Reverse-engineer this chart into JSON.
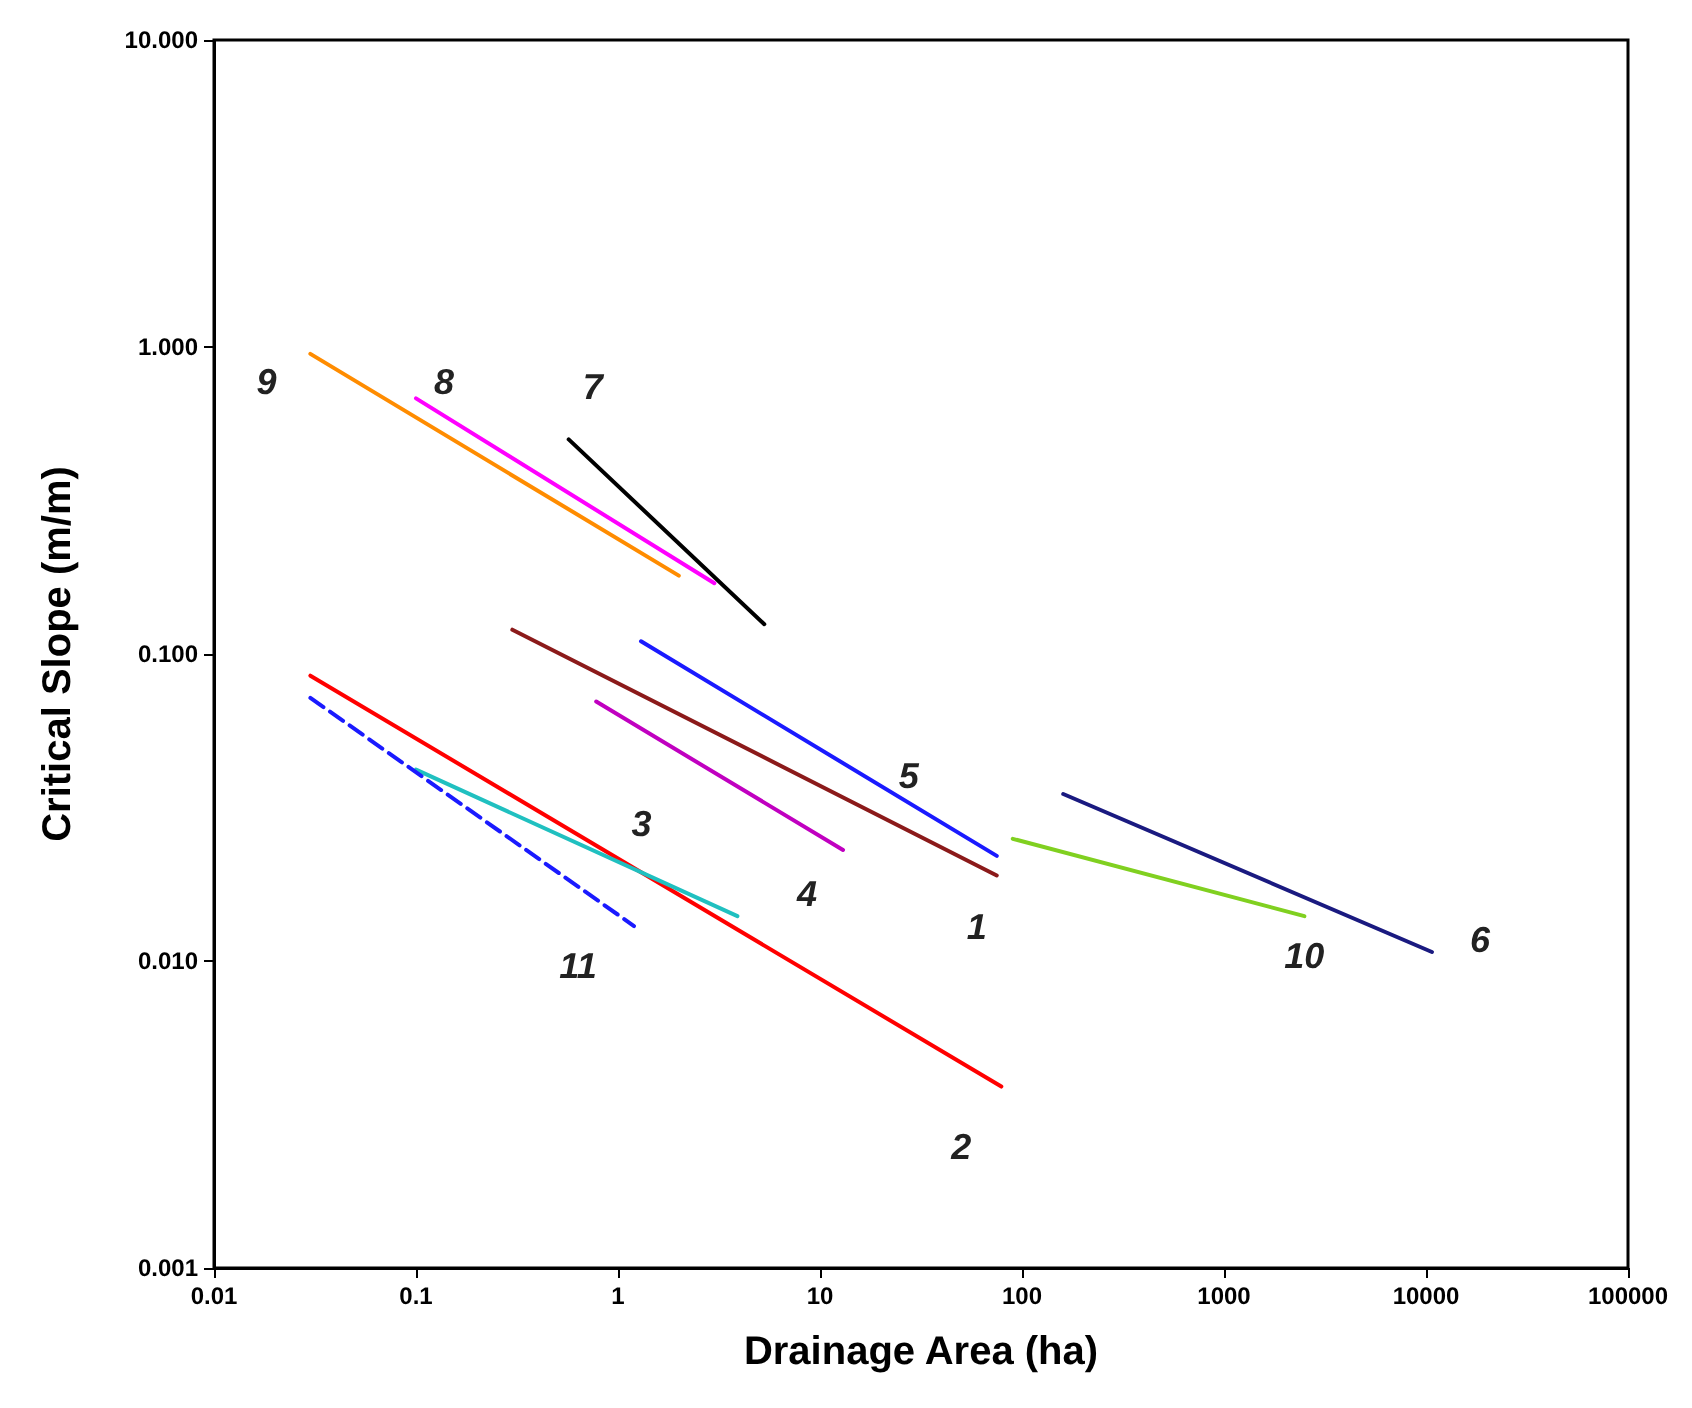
{
  "chart_data": {
    "type": "line",
    "xlabel": "Drainage Area (ha)",
    "ylabel": "Critical Slope (m/m)",
    "log": "xy",
    "grid": false,
    "legend": false,
    "marker": "none",
    "xlim": [
      0.01,
      100000
    ],
    "ylim": [
      0.001,
      10
    ],
    "xticks": [
      0.01,
      0.1,
      1,
      10,
      100,
      1000,
      10000,
      100000
    ],
    "yticks": [
      {
        "value": 0.001,
        "label": "0.001"
      },
      {
        "value": 0.01,
        "label": "0.010"
      },
      {
        "value": 0.1,
        "label": "0.100"
      },
      {
        "value": 1,
        "label": "1.000"
      },
      {
        "value": 10,
        "label": "10.000"
      }
    ],
    "series": [
      {
        "name": "9",
        "color": "#ff8c00",
        "x": [
          0.03,
          2
        ],
        "values": [
          0.95,
          0.18
        ]
      },
      {
        "name": "8",
        "color": "#ff00ff",
        "x": [
          0.1,
          3
        ],
        "values": [
          0.68,
          0.17
        ]
      },
      {
        "name": "7",
        "color": "#000000",
        "x": [
          0.57,
          5.3
        ],
        "values": [
          0.5,
          0.125
        ]
      },
      {
        "name": "1",
        "color": "#8b1a1a",
        "x": [
          0.3,
          75
        ],
        "values": [
          0.12,
          0.019
        ]
      },
      {
        "name": "5",
        "color": "#1a1aff",
        "x": [
          1.3,
          75
        ],
        "values": [
          0.11,
          0.022
        ]
      },
      {
        "name": "4",
        "color": "#c000c0",
        "x": [
          0.78,
          13
        ],
        "values": [
          0.07,
          0.023
        ]
      },
      {
        "name": "2",
        "color": "#ff0000",
        "x": [
          0.03,
          79
        ],
        "values": [
          0.085,
          0.0039
        ]
      },
      {
        "name": "3",
        "color": "#20c0c0",
        "x": [
          0.1,
          3.9
        ],
        "values": [
          0.042,
          0.014
        ]
      },
      {
        "name": "11",
        "color": "#1a1aff",
        "x": [
          0.03,
          1.2
        ],
        "values": [
          0.072,
          0.013
        ],
        "line_style": "dashed"
      },
      {
        "name": "10",
        "color": "#80d020",
        "x": [
          90,
          2500
        ],
        "values": [
          0.025,
          0.014
        ]
      },
      {
        "name": "6",
        "color": "#1a1a80",
        "x": [
          160,
          10700
        ],
        "values": [
          0.035,
          0.0107
        ]
      }
    ]
  }
}
